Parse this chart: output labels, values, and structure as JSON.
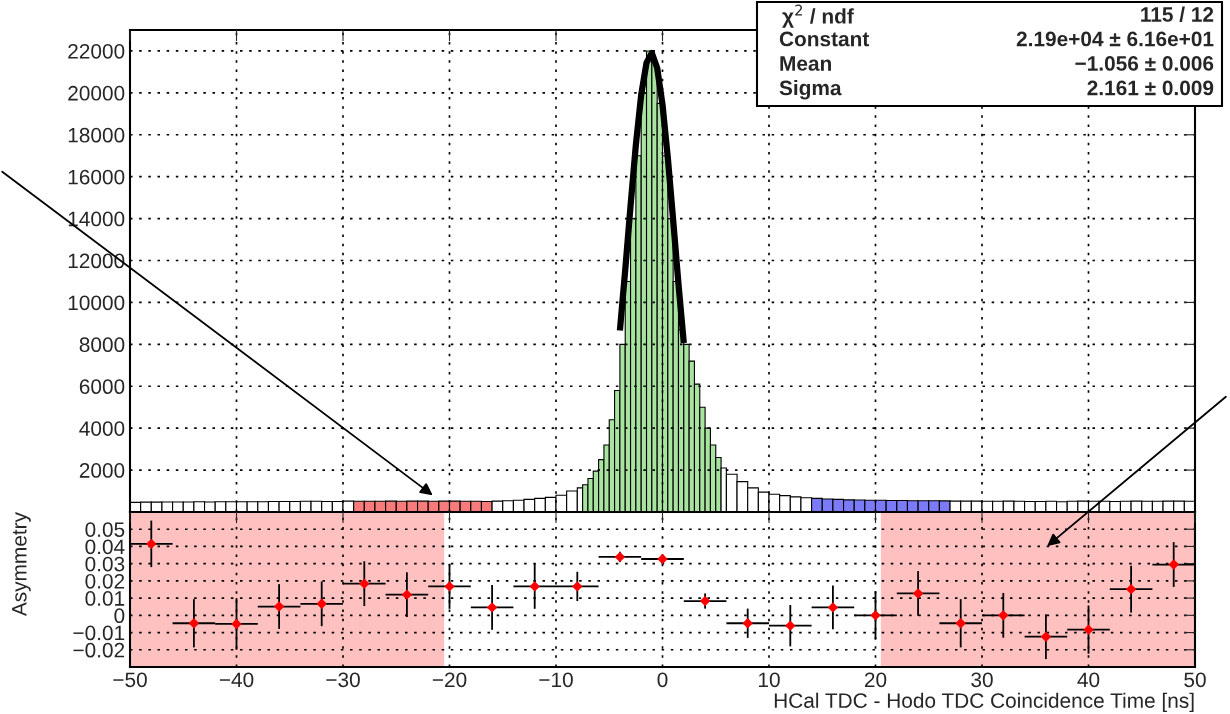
{
  "chart_data": [
    {
      "type": "histogram",
      "bins": [
        -50,
        -49,
        -48,
        -47,
        -46,
        -45,
        -44,
        -43,
        -42,
        -41,
        -40,
        -39,
        -38,
        -37,
        -36,
        -35,
        -34,
        -33,
        -32,
        -31,
        -30,
        -29,
        -28,
        -27,
        -26,
        -25,
        -24,
        -23,
        -22,
        -21,
        -20,
        -19,
        -18,
        -17,
        -16,
        -15,
        -14,
        -13,
        -12,
        -11,
        -10,
        -9,
        -8,
        -7.5,
        -7,
        -6.5,
        -6,
        -5.5,
        -5,
        -4.5,
        -4,
        -3.5,
        -3,
        -2.5,
        -2,
        -1.5,
        -1,
        -0.5,
        0,
        0.5,
        1,
        1.5,
        2,
        2.5,
        3,
        3.5,
        4,
        4.5,
        5,
        5.5,
        6,
        7,
        8,
        9,
        10,
        11,
        12,
        13,
        14,
        15,
        16,
        17,
        18,
        19,
        20,
        21,
        22,
        23,
        24,
        25,
        26,
        27,
        28,
        29,
        30,
        31,
        32,
        33,
        34,
        35,
        36,
        37,
        38,
        39,
        40,
        41,
        42,
        43,
        44,
        45,
        46,
        47,
        48,
        49,
        50
      ],
      "values": [
        460,
        470,
        470,
        480,
        480,
        480,
        490,
        480,
        490,
        490,
        490,
        490,
        490,
        500,
        500,
        500,
        510,
        510,
        500,
        500,
        520,
        510,
        510,
        510,
        520,
        510,
        520,
        520,
        510,
        520,
        520,
        510,
        510,
        500,
        520,
        540,
        560,
        600,
        650,
        700,
        800,
        1000,
        1150,
        1300,
        1600,
        1950,
        2500,
        3200,
        4400,
        5800,
        8000,
        11000,
        14000,
        17000,
        20000,
        22000,
        21500,
        19500,
        17000,
        14000,
        11000,
        8700,
        8000,
        7200,
        6100,
        5000,
        4000,
        3200,
        2600,
        2100,
        1800,
        1450,
        1150,
        950,
        850,
        780,
        720,
        680,
        650,
        620,
        600,
        580,
        570,
        560,
        560,
        550,
        550,
        540,
        540,
        540,
        530,
        520,
        520,
        520,
        510,
        510,
        520,
        510,
        500,
        500,
        510,
        490,
        510,
        520,
        510,
        510,
        500,
        510,
        520,
        510,
        510,
        520,
        520,
        510
      ],
      "colors": [
        null,
        null,
        null,
        null,
        null,
        null,
        null,
        null,
        null,
        null,
        null,
        null,
        null,
        null,
        null,
        null,
        null,
        null,
        null,
        null,
        null,
        "#f77b7b",
        "#f77b7b",
        "#f77b7b",
        "#f77b7b",
        "#f77b7b",
        "#f77b7b",
        "#f77b7b",
        "#f77b7b",
        "#f77b7b",
        "#f77b7b",
        "#f77b7b",
        "#f77b7b",
        "#f77b7b",
        null,
        null,
        null,
        null,
        null,
        null,
        null,
        null,
        null,
        "#a8e3a0",
        "#a8e3a0",
        "#a8e3a0",
        "#a8e3a0",
        "#a8e3a0",
        "#a8e3a0",
        "#a8e3a0",
        "#a8e3a0",
        "#a8e3a0",
        "#a8e3a0",
        "#a8e3a0",
        "#a8e3a0",
        "#a8e3a0",
        "#a8e3a0",
        "#a8e3a0",
        "#a8e3a0",
        "#a8e3a0",
        "#a8e3a0",
        "#a8e3a0",
        "#a8e3a0",
        "#a8e3a0",
        "#a8e3a0",
        "#a8e3a0",
        "#a8e3a0",
        "#a8e3a0",
        "#a8e3a0",
        null,
        null,
        null,
        null,
        null,
        null,
        null,
        null,
        null,
        "#7b7bf7",
        "#7b7bf7",
        "#7b7bf7",
        "#7b7bf7",
        "#7b7bf7",
        "#7b7bf7",
        "#7b7bf7",
        "#7b7bf7",
        "#7b7bf7",
        "#7b7bf7",
        "#7b7bf7",
        "#7b7bf7",
        "#7b7bf7",
        null,
        null,
        null,
        null,
        null,
        null,
        null,
        null,
        null,
        null,
        null,
        null,
        null,
        null,
        null,
        null,
        null,
        null,
        null,
        null,
        null,
        null,
        null
      ],
      "series": [
        {
          "type": "line",
          "color": "#000000",
          "x": [
            -4,
            -3.5,
            -3,
            -2.5,
            -2,
            -1.5,
            -1,
            -0.5,
            0,
            0.5,
            1,
            1.5,
            2
          ],
          "values": [
            8660,
            11550,
            14610,
            17520,
            19910,
            21440,
            21900,
            21190,
            19440,
            16900,
            13930,
            10880,
            8060
          ]
        }
      ],
      "xlim": [
        -50,
        50
      ],
      "xticks": [
        -50,
        -40,
        -30,
        -20,
        -10,
        0,
        10,
        20,
        30,
        40,
        50
      ],
      "ylim": [
        0,
        23000
      ],
      "yticks": [
        2000,
        4000,
        6000,
        8000,
        10000,
        12000,
        14000,
        16000,
        18000,
        20000,
        22000
      ],
      "tick_labels": "y",
      "grid": true,
      "annotations": [
        "χ$^{2}$ / ndf",
        "115 / 12",
        "Constant",
        "2.19e+04 ± 6.16e+01",
        "Mean",
        "−1.056 ± 0.006",
        "Sigma",
        "2.161 ± 0.009"
      ]
    },
    {
      "type": "scatter",
      "x": [
        -48,
        -44,
        -40,
        -36,
        -32,
        -28,
        -24,
        -20,
        -16,
        -12,
        -8,
        -4,
        0,
        4,
        8,
        12,
        16,
        20,
        24,
        28,
        32,
        36,
        40,
        44,
        48
      ],
      "series": [
        {
          "color": "#ff0000",
          "values": [
            0.0415,
            -0.0046,
            -0.005,
            0.0051,
            0.0067,
            0.0184,
            0.012,
            0.0168,
            0.0046,
            0.0168,
            0.0168,
            0.0339,
            0.0327,
            0.0083,
            -0.0046,
            -0.006,
            0.0046,
            0.0,
            0.0127,
            -0.0046,
            0.0,
            -0.0124,
            -0.0083,
            0.0152,
            0.0295
          ],
          "errors": [
            0.0135,
            0.014,
            0.015,
            0.013,
            0.013,
            0.013,
            0.013,
            0.013,
            0.013,
            0.013,
            0.0085,
            0.003,
            0.0025,
            0.0044,
            0.0085,
            0.012,
            0.0127,
            0.014,
            0.013,
            0.014,
            0.013,
            0.013,
            0.014,
            0.0136,
            0.013
          ],
          "xerrors": [
            2,
            2,
            2,
            2,
            2,
            2,
            2,
            2,
            2,
            2,
            2,
            2,
            2,
            2,
            2,
            2,
            2,
            2,
            2,
            2,
            2,
            2,
            2,
            2,
            2
          ]
        }
      ],
      "marker": "diamond",
      "bands": [
        {
          "axis": "x",
          "from": -50,
          "to": -20.5,
          "color": "#ffc0c0"
        },
        {
          "axis": "x",
          "from": 20.5,
          "to": 50,
          "color": "#ffc0c0"
        }
      ],
      "xlim": [
        -50,
        50
      ],
      "xticks": [
        {
          "value": -50,
          "label": "−50"
        },
        {
          "value": -40,
          "label": "−40"
        },
        {
          "value": -30,
          "label": "−30"
        },
        {
          "value": -20,
          "label": "−20"
        },
        {
          "value": -10,
          "label": "−10"
        },
        0,
        10,
        20,
        30,
        40,
        50
      ],
      "ylim": [
        -0.03,
        0.06
      ],
      "yticks": [
        {
          "value": -0.02,
          "label": "−0.02"
        },
        {
          "value": -0.01,
          "label": "−0.01"
        },
        0,
        0.01,
        0.02,
        0.03,
        0.04,
        0.05
      ],
      "grid": true,
      "xlabel": "HCal TDC - Hodo TDC Coincidence Time [ns]",
      "ylabel": "Asymmetry"
    }
  ]
}
